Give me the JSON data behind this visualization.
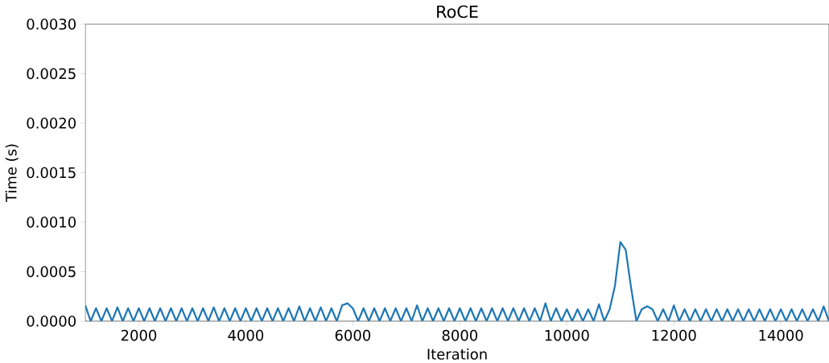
{
  "chart_data": {
    "type": "line",
    "title": "RoCE",
    "xlabel": "Iteration",
    "ylabel": "Time (s)",
    "xlim": [
      1000,
      14900
    ],
    "xticks": [
      2000,
      4000,
      6000,
      8000,
      10000,
      12000,
      14000
    ],
    "ylim": [
      0,
      0.003
    ],
    "yticks": [
      {
        "value": 0,
        "label": "0.0000"
      },
      {
        "value": 0.0005,
        "label": "0.0005"
      },
      {
        "value": 0.001,
        "label": "0.0010"
      },
      {
        "value": 0.0015,
        "label": "0.0015"
      },
      {
        "value": 0.002,
        "label": "0.0020"
      },
      {
        "value": 0.0025,
        "label": "0.0025"
      },
      {
        "value": 0.003,
        "label": "0.0030"
      }
    ],
    "x": [
      1000,
      1100,
      1200,
      1300,
      1400,
      1500,
      1600,
      1700,
      1800,
      1900,
      2000,
      2100,
      2200,
      2300,
      2400,
      2500,
      2600,
      2700,
      2800,
      2900,
      3000,
      3100,
      3200,
      3300,
      3400,
      3500,
      3600,
      3700,
      3800,
      3900,
      4000,
      4100,
      4200,
      4300,
      4400,
      4500,
      4600,
      4700,
      4800,
      4900,
      5000,
      5100,
      5200,
      5300,
      5400,
      5500,
      5600,
      5700,
      5800,
      5900,
      6000,
      6100,
      6200,
      6300,
      6400,
      6500,
      6600,
      6700,
      6800,
      6900,
      7000,
      7100,
      7200,
      7300,
      7400,
      7500,
      7600,
      7700,
      7800,
      7900,
      8000,
      8100,
      8200,
      8300,
      8400,
      8500,
      8600,
      8700,
      8800,
      8900,
      9000,
      9100,
      9200,
      9300,
      9400,
      9500,
      9600,
      9700,
      9800,
      9900,
      10000,
      10100,
      10200,
      10300,
      10400,
      10500,
      10600,
      10700,
      10800,
      10900,
      11000,
      11100,
      11200,
      11300,
      11400,
      11500,
      11600,
      11700,
      11800,
      11900,
      12000,
      12100,
      12200,
      12300,
      12400,
      12500,
      12600,
      12700,
      12800,
      12900,
      13000,
      13100,
      13200,
      13300,
      13400,
      13500,
      13600,
      13700,
      13800,
      13900,
      14000,
      14100,
      14200,
      14300,
      14400,
      14500,
      14600,
      14700,
      14800,
      14900
    ],
    "series": [
      {
        "color": "#1f77b4",
        "values": [
          0.00016,
          0,
          0.00013,
          0,
          0.00013,
          0,
          0.00014,
          0,
          0.00013,
          0,
          0.00013,
          0,
          0.00013,
          0,
          0.00013,
          0,
          0.00013,
          0,
          0.00013,
          0,
          0.00013,
          0,
          0.00013,
          0,
          0.00014,
          0,
          0.00013,
          0,
          0.00013,
          0,
          0.00013,
          0,
          0.00013,
          0,
          0.00013,
          0,
          0.00013,
          0,
          0.00013,
          0,
          0.00015,
          0,
          0.00013,
          0,
          0.00014,
          0,
          0.00013,
          0,
          0.00016,
          0.00018,
          0.00013,
          0,
          0.00013,
          0,
          0.00013,
          0,
          0.00013,
          0,
          0.00013,
          0,
          0.00013,
          0,
          0.00016,
          0,
          0.00013,
          0,
          0.00013,
          0,
          0.00013,
          0,
          0.00013,
          0,
          0.00013,
          0,
          0.00013,
          0,
          0.00013,
          0,
          0.00013,
          0,
          0.00013,
          0,
          0.00013,
          0,
          0.00013,
          0,
          0.00018,
          0,
          0.00013,
          0,
          0.00012,
          0,
          0.00012,
          0,
          0.00012,
          0,
          0.00017,
          0,
          0.00012,
          0.00036,
          0.0008,
          0.00072,
          0.00034,
          0,
          0.00012,
          0.00015,
          0.00012,
          0,
          0.00012,
          0,
          0.00016,
          0,
          0.00012,
          0,
          0.00012,
          0,
          0.00012,
          0,
          0.00012,
          0,
          0.00012,
          0,
          0.00012,
          0,
          0.00012,
          0,
          0.00012,
          0,
          0.00012,
          0,
          0.00012,
          0,
          0.00012,
          0,
          0.00012,
          0,
          0.00012,
          0,
          0.00015,
          0
        ]
      }
    ],
    "grid": false,
    "legend": false,
    "marker": "none",
    "line_style": "solid"
  }
}
